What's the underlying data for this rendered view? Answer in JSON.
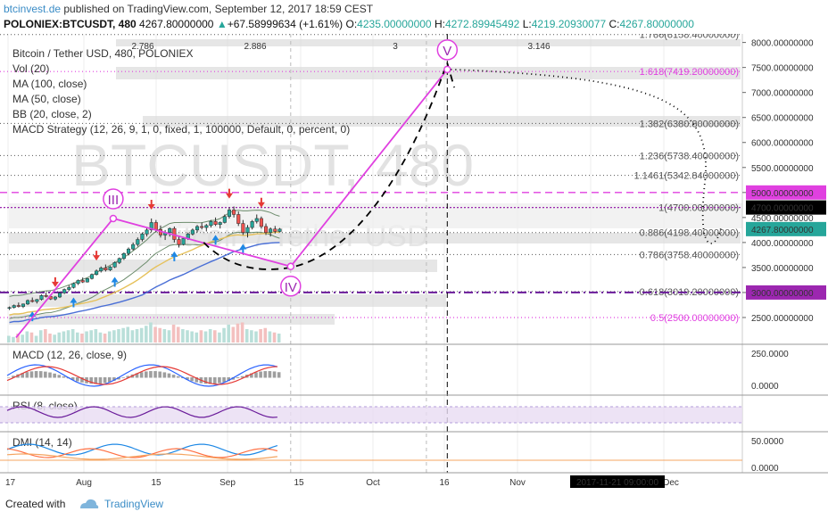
{
  "header": {
    "site": "btcinvest.de",
    "published": " published on TradingView.com, September 12, 2017 18:59 CEST"
  },
  "ticker": {
    "symbol": "POLONIEX:BTCUSDT, 480",
    "last": "4267.80000000",
    "change_arrow": "▲",
    "change": "+67.58999634 (+1.61%)",
    "o_label": "O:",
    "o": "4235.00000000",
    "h_label": "H:",
    "h": "4272.89945492",
    "l_label": "L:",
    "l": "4219.20930077",
    "c_label": "C:",
    "c": "4267.80000000"
  },
  "legend": {
    "title": "Bitcoin / Tether USD, 480, POLONIEX",
    "vol": "Vol (20)",
    "ma100": "MA (100, close)",
    "ma50": "MA (50, close)",
    "bb": "BB (20, close, 2)",
    "macd_strategy": "MACD Strategy (12, 26, 9, 1, 0, fixed, 1, 100000, Default, 0, percent, 0)"
  },
  "watermark": {
    "big": "BTCUSDT, 480",
    "small": "Bitcoin / Tether USD"
  },
  "top_scale": [
    "2.786",
    "2.886",
    "3",
    "3.146"
  ],
  "waves": [
    "III",
    "IV",
    "V"
  ],
  "colors": {
    "fib": "#e040e0",
    "wave": "#e040e0",
    "ma50": "#e6c15a",
    "ma100": "#4a6fd6",
    "bb": "#6c8c6c",
    "macd": "#2962ff",
    "signal": "#e53935",
    "rsi": "#6a1b9a",
    "dmi_plus": "#1e88e5",
    "dmi_minus": "#ff7043",
    "up": "#26a69a",
    "down": "#ef5350"
  },
  "chart_data": {
    "type": "candlestick",
    "title": "Bitcoin / Tether USD, 480, POLONIEX",
    "x_ticks": [
      "17",
      "Aug",
      "15",
      "Sep",
      "15",
      "Oct",
      "16",
      "Nov",
      "16",
      "Dec"
    ],
    "date_label": "2017-11-21 09:00:00",
    "y_ticks": [
      "8000.00000000",
      "7500.00000000",
      "7000.00000000",
      "6500.00000000",
      "6000.00000000",
      "5500.00000000",
      "5000.00000000",
      "4500.00000000",
      "4000.00000000",
      "3500.00000000",
      "3000.00000000",
      "2500.00000000"
    ],
    "ylim": [
      2000,
      8100
    ],
    "last_price": 4267.8,
    "price_labels": [
      {
        "text": "5000.00000000",
        "color": "#e040e0",
        "value": 5000
      },
      {
        "text": "4700.00000000",
        "color": "#000000",
        "value": 4700
      },
      {
        "text": "4267.80000000",
        "color": "#26a69a",
        "value": 4267.8
      },
      {
        "text": "3000.00000000",
        "color": "#9c27b0",
        "value": 3000
      }
    ],
    "fib_levels": [
      {
        "label": "1.786(8158.40000000)",
        "value": 8158.4
      },
      {
        "label": "1.618(7419.20000000)",
        "value": 7419.2
      },
      {
        "label": "1.382(6380.80000000)",
        "value": 6380.8
      },
      {
        "label": "1.236(5738.40000000)",
        "value": 5738.4
      },
      {
        "label": "1.1461(5342.84000000)",
        "value": 5342.84
      },
      {
        "label": "1(4700.00000000)",
        "value": 4700
      },
      {
        "label": "0.886(4198.40000000)",
        "value": 4198.4
      },
      {
        "label": "0.786(3758.40000000)",
        "value": 3758.4
      },
      {
        "label": "0.618(3019.20000000)",
        "value": 3019.2
      },
      {
        "label": "0.5(2500.00000000)",
        "value": 2500
      }
    ],
    "wave_points": [
      {
        "label": "III",
        "date": "2017-08-17",
        "value": 4480
      },
      {
        "label": "IV",
        "date": "2017-10-07",
        "value": 3520
      },
      {
        "label": "V",
        "date": "2017-11-21",
        "value": 7460
      }
    ],
    "projection": [
      {
        "date": "2017-09-12",
        "value": 4000
      },
      {
        "date": "2017-10-07",
        "value": 3500
      },
      {
        "date": "2017-10-25",
        "value": 4300
      },
      {
        "date": "2017-11-15",
        "value": 6800
      },
      {
        "date": "2017-11-23",
        "value": 7100
      }
    ],
    "candles": [
      [
        2690,
        2720,
        2650,
        2700
      ],
      [
        2700,
        2760,
        2680,
        2740
      ],
      [
        2740,
        2800,
        2700,
        2720
      ],
      [
        2720,
        2780,
        2690,
        2770
      ],
      [
        2770,
        2860,
        2750,
        2840
      ],
      [
        2840,
        2900,
        2800,
        2820
      ],
      [
        2820,
        2870,
        2780,
        2860
      ],
      [
        2860,
        2960,
        2840,
        2940
      ],
      [
        2940,
        3000,
        2900,
        2920
      ],
      [
        2920,
        2950,
        2850,
        2870
      ],
      [
        2870,
        2930,
        2840,
        2910
      ],
      [
        2910,
        3010,
        2890,
        2990
      ],
      [
        2990,
        3080,
        2970,
        3060
      ],
      [
        3060,
        3140,
        3030,
        3100
      ],
      [
        3100,
        3200,
        3080,
        3180
      ],
      [
        3180,
        3260,
        3150,
        3240
      ],
      [
        3240,
        3300,
        3190,
        3210
      ],
      [
        3210,
        3290,
        3200,
        3280
      ],
      [
        3280,
        3380,
        3260,
        3360
      ],
      [
        3360,
        3460,
        3340,
        3430
      ],
      [
        3430,
        3520,
        3400,
        3490
      ],
      [
        3490,
        3560,
        3420,
        3450
      ],
      [
        3450,
        3530,
        3430,
        3510
      ],
      [
        3510,
        3620,
        3490,
        3600
      ],
      [
        3600,
        3700,
        3570,
        3680
      ],
      [
        3680,
        3800,
        3650,
        3780
      ],
      [
        3780,
        3900,
        3740,
        3870
      ],
      [
        3870,
        4000,
        3840,
        3960
      ],
      [
        3960,
        4100,
        3920,
        4060
      ],
      [
        4060,
        4200,
        4020,
        4170
      ],
      [
        4170,
        4300,
        4120,
        4250
      ],
      [
        4250,
        4480,
        4200,
        4400
      ],
      [
        4400,
        4450,
        4200,
        4260
      ],
      [
        4260,
        4340,
        4100,
        4150
      ],
      [
        4150,
        4250,
        4050,
        4200
      ],
      [
        4200,
        4300,
        4120,
        4280
      ],
      [
        4280,
        4320,
        4000,
        4060
      ],
      [
        4060,
        4120,
        3900,
        3960
      ],
      [
        3960,
        4100,
        3940,
        4080
      ],
      [
        4080,
        4200,
        4050,
        4170
      ],
      [
        4170,
        4280,
        4140,
        4250
      ],
      [
        4250,
        4350,
        4200,
        4320
      ],
      [
        4320,
        4400,
        4260,
        4300
      ],
      [
        4300,
        4370,
        4220,
        4340
      ],
      [
        4340,
        4450,
        4300,
        4420
      ],
      [
        4420,
        4500,
        4330,
        4360
      ],
      [
        4360,
        4420,
        4280,
        4400
      ],
      [
        4400,
        4560,
        4380,
        4520
      ],
      [
        4520,
        4700,
        4480,
        4650
      ],
      [
        4650,
        4720,
        4500,
        4560
      ],
      [
        4560,
        4620,
        4330,
        4380
      ],
      [
        4380,
        4450,
        4150,
        4200
      ],
      [
        4200,
        4350,
        4100,
        4300
      ],
      [
        4300,
        4450,
        4260,
        4420
      ],
      [
        4420,
        4560,
        4380,
        4480
      ],
      [
        4480,
        4520,
        4280,
        4320
      ],
      [
        4320,
        4380,
        4150,
        4200
      ],
      [
        4200,
        4300,
        4120,
        4270
      ],
      [
        4270,
        4330,
        4180,
        4220
      ],
      [
        4220,
        4290,
        4200,
        4267.8
      ]
    ],
    "volume": [
      30,
      25,
      40,
      35,
      50,
      45,
      30,
      55,
      60,
      40,
      35,
      45,
      50,
      55,
      60,
      45,
      40,
      50,
      55,
      60,
      45,
      40,
      50,
      55,
      60,
      65,
      70,
      55,
      60,
      65,
      75,
      90,
      70,
      65,
      60,
      55,
      80,
      70,
      60,
      55,
      50,
      45,
      55,
      50,
      60,
      55,
      45,
      65,
      80,
      70,
      85,
      90,
      60,
      55,
      50,
      60,
      65,
      50,
      45,
      40
    ],
    "macd_panel": {
      "title": "MACD (12, 26, close, 9)",
      "y_ticks": [
        "250.0000",
        "0.0000"
      ]
    },
    "rsi_panel": {
      "title": "RSI (8, close)"
    },
    "dmi_panel": {
      "title": "DMI (14, 14)",
      "y_ticks": [
        "50.0000",
        "0.0000"
      ]
    }
  },
  "footer": {
    "created": "Created with",
    "brand": "TradingView"
  }
}
